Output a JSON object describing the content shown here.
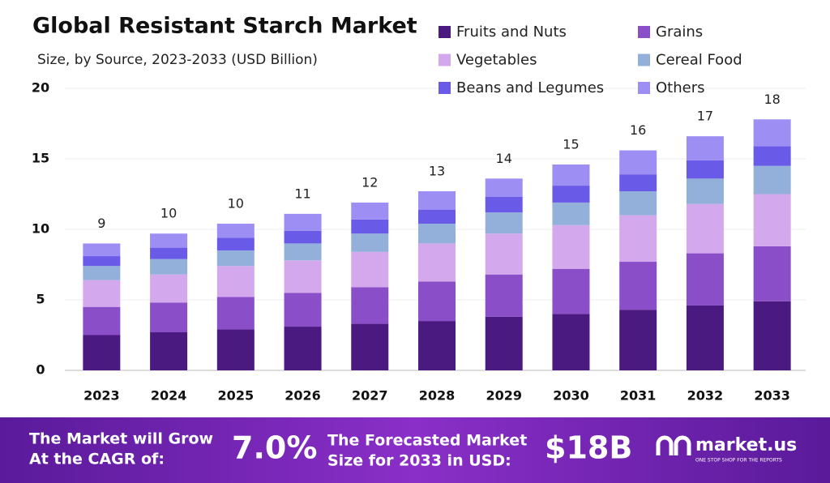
{
  "chart_data": {
    "type": "stacked_bar",
    "title": "Global Resistant Starch Market",
    "subtitle": "Size, by Source, 2023-2033 (USD Billion)",
    "categories": [
      "2023",
      "2024",
      "2025",
      "2026",
      "2027",
      "2028",
      "2029",
      "2030",
      "2031",
      "2032",
      "2033"
    ],
    "series": [
      {
        "name": "Fruits and Nuts",
        "color": "#4a1a80",
        "values": [
          2.5,
          2.7,
          2.9,
          3.1,
          3.3,
          3.5,
          3.8,
          4.0,
          4.3,
          4.6,
          4.9
        ]
      },
      {
        "name": "Grains",
        "color": "#8a4ec8",
        "values": [
          2.0,
          2.1,
          2.3,
          2.4,
          2.6,
          2.8,
          3.0,
          3.2,
          3.4,
          3.7,
          3.9
        ]
      },
      {
        "name": "Vegetables",
        "color": "#d4a8ec",
        "values": [
          1.9,
          2.0,
          2.2,
          2.3,
          2.5,
          2.7,
          2.9,
          3.1,
          3.3,
          3.5,
          3.7
        ]
      },
      {
        "name": "Cereal Food",
        "color": "#92b0da",
        "values": [
          1.0,
          1.1,
          1.1,
          1.2,
          1.3,
          1.4,
          1.5,
          1.6,
          1.7,
          1.8,
          2.0
        ]
      },
      {
        "name": "Beans and Legumes",
        "color": "#6a5ae8",
        "values": [
          0.7,
          0.8,
          0.9,
          0.9,
          1.0,
          1.0,
          1.1,
          1.2,
          1.2,
          1.3,
          1.4
        ]
      },
      {
        "name": "Others",
        "color": "#9c8ef2",
        "values": [
          0.9,
          1.0,
          1.0,
          1.2,
          1.2,
          1.3,
          1.3,
          1.5,
          1.7,
          1.7,
          1.9
        ]
      }
    ],
    "total_labels": [
      9,
      10,
      10,
      11,
      12,
      13,
      14,
      15,
      16,
      17,
      18
    ],
    "ylim": [
      0,
      20
    ],
    "yticks": [
      0,
      5,
      10,
      15,
      20
    ],
    "grid": true
  },
  "footer": {
    "cagr_text": [
      "The Market will Grow",
      "At the CAGR of:"
    ],
    "cagr_value": "7.0%",
    "forecast_text": [
      "The Forecasted Market",
      "Size for 2033 in USD:"
    ],
    "forecast_value": "$18B",
    "brand": "market.us",
    "tagline": "ONE STOP SHOP FOR THE REPORTS"
  }
}
